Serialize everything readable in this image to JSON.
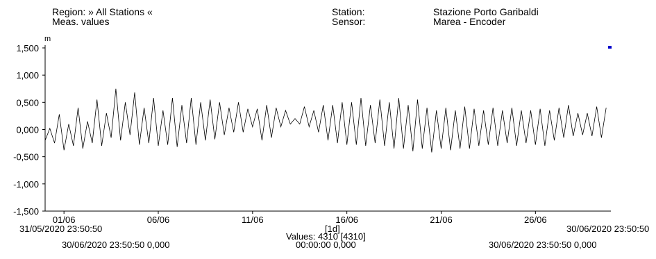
{
  "header": {
    "region_label": "Region: » All Stations «",
    "meas_label": "Meas. values",
    "station_key": "Station:",
    "station_value": "Stazione Porto Garibaldi",
    "sensor_key": "Sensor:",
    "sensor_value": "Marea - Encoder"
  },
  "footer": {
    "start_datetime": "31/05/2020 23:50:50",
    "end_datetime": "30/06/2020 23:50:50",
    "interval": "[1d]",
    "values_count": "Values: 4310 [4310]",
    "left_cursor": "30/06/2020 23:50:50  0,000",
    "mid_cursor": "00:00:00  0,000",
    "right_cursor": "30/06/2020 23:50:50  0,000"
  },
  "colors": {
    "series": "#000000",
    "marker": "#0000cc",
    "axis": "#000000"
  },
  "chart_data": {
    "type": "line",
    "title": "",
    "xlabel": "",
    "ylabel": "m",
    "ylim": [
      -1.5,
      1.5
    ],
    "xlim": [
      0,
      30
    ],
    "y_ticks": [
      1.5,
      1.0,
      0.5,
      0.0,
      -0.5,
      -1.0,
      -1.5
    ],
    "y_tick_labels": [
      "1,500",
      "1,000",
      "0,500",
      "0,000",
      "-0,500",
      "-1,000",
      "-1,500"
    ],
    "x_ticks": [
      1,
      6,
      11,
      16,
      21,
      26
    ],
    "x_tick_labels": [
      "01/06",
      "06/06",
      "11/06",
      "16/06",
      "21/06",
      "26/06"
    ],
    "grid": false,
    "series": [
      {
        "x": [
          0.0,
          0.25,
          0.5,
          0.75,
          1.0,
          1.25,
          1.5,
          1.75,
          2.0,
          2.25,
          2.5,
          2.75,
          3.0,
          3.25,
          3.5,
          3.75,
          4.0,
          4.25,
          4.5,
          4.75,
          5.0,
          5.25,
          5.5,
          5.75,
          6.0,
          6.25,
          6.5,
          6.75,
          7.0,
          7.25,
          7.5,
          7.75,
          8.0,
          8.25,
          8.5,
          8.75,
          9.0,
          9.25,
          9.5,
          9.75,
          10.0,
          10.25,
          10.5,
          10.75,
          11.0,
          11.25,
          11.5,
          11.75,
          12.0,
          12.25,
          12.5,
          12.75,
          13.0,
          13.25,
          13.5,
          13.75,
          14.0,
          14.25,
          14.5,
          14.75,
          15.0,
          15.25,
          15.5,
          15.75,
          16.0,
          16.25,
          16.5,
          16.75,
          17.0,
          17.25,
          17.5,
          17.75,
          18.0,
          18.25,
          18.5,
          18.75,
          19.0,
          19.25,
          19.5,
          19.75,
          20.0,
          20.25,
          20.5,
          20.75,
          21.0,
          21.25,
          21.5,
          21.75,
          22.0,
          22.25,
          22.5,
          22.75,
          23.0,
          23.25,
          23.5,
          23.75,
          24.0,
          24.25,
          24.5,
          24.75,
          25.0,
          25.25,
          25.5,
          25.75,
          26.0,
          26.25,
          26.5,
          26.75,
          27.0,
          27.25,
          27.5,
          27.75,
          28.0,
          28.25,
          28.5,
          28.75,
          29.0,
          29.25,
          29.5,
          29.75
        ],
        "values": [
          -0.2,
          0.02,
          -0.25,
          0.28,
          -0.38,
          0.1,
          -0.3,
          0.4,
          -0.35,
          0.15,
          -0.25,
          0.55,
          -0.3,
          0.3,
          -0.15,
          0.75,
          -0.2,
          0.5,
          -0.1,
          0.68,
          -0.28,
          0.4,
          -0.25,
          0.58,
          -0.3,
          0.35,
          -0.28,
          0.58,
          -0.32,
          0.45,
          -0.25,
          0.58,
          -0.28,
          0.5,
          -0.2,
          0.55,
          -0.18,
          0.5,
          -0.1,
          0.4,
          -0.05,
          0.5,
          -0.05,
          0.38,
          0.05,
          0.38,
          -0.2,
          0.45,
          -0.15,
          0.4,
          0.05,
          0.35,
          0.1,
          0.2,
          0.1,
          0.42,
          0.05,
          0.35,
          -0.05,
          0.45,
          -0.2,
          0.45,
          -0.25,
          0.5,
          -0.28,
          0.5,
          -0.28,
          0.58,
          -0.3,
          0.45,
          -0.25,
          0.55,
          -0.3,
          0.5,
          -0.35,
          0.58,
          -0.35,
          0.45,
          -0.4,
          0.55,
          -0.35,
          0.4,
          -0.42,
          0.35,
          -0.35,
          0.4,
          -0.38,
          0.35,
          -0.35,
          0.42,
          -0.35,
          0.38,
          -0.3,
          0.35,
          -0.28,
          0.4,
          -0.3,
          0.35,
          -0.25,
          0.4,
          -0.3,
          0.35,
          -0.25,
          0.35,
          -0.28,
          0.38,
          -0.3,
          0.35,
          -0.2,
          0.4,
          -0.15,
          0.45,
          -0.12,
          0.3,
          -0.1,
          0.3,
          -0.12,
          0.42,
          -0.15,
          0.4
        ]
      }
    ]
  }
}
